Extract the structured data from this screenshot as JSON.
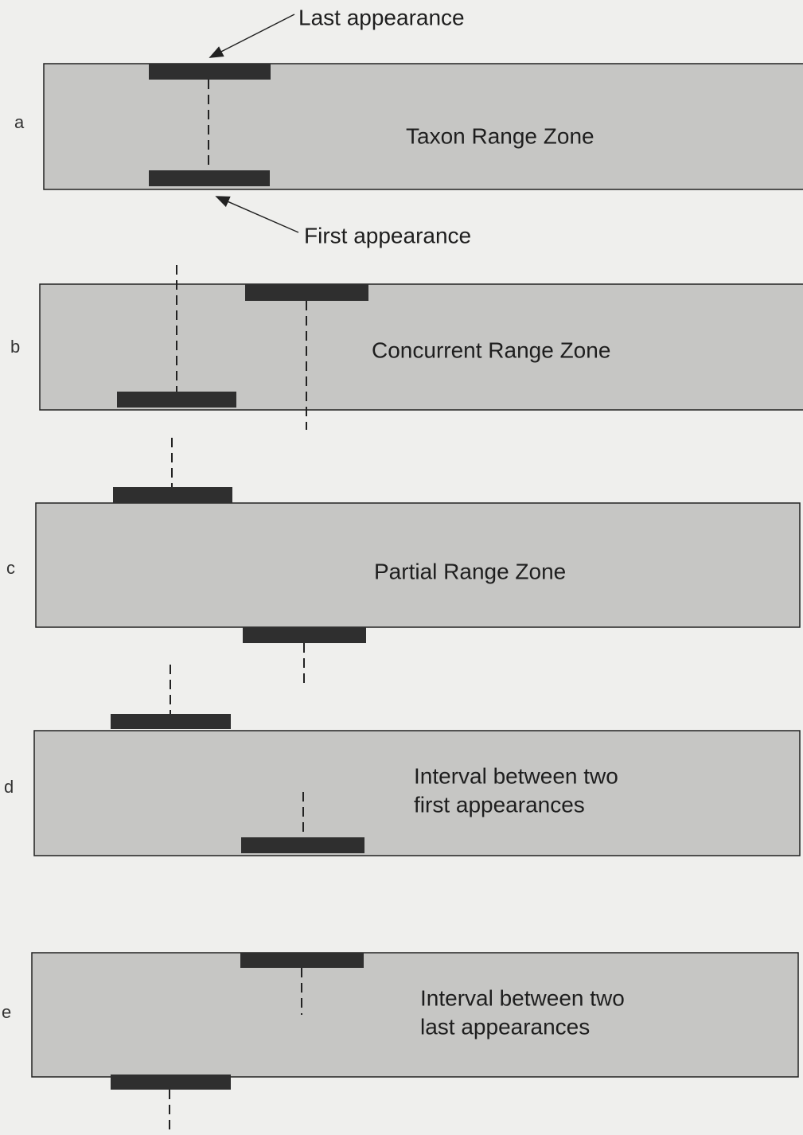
{
  "annotations": {
    "last_appearance": "Last appearance",
    "first_appearance": "First appearance"
  },
  "panels": [
    {
      "letter": "a",
      "label": [
        "Taxon Range Zone"
      ]
    },
    {
      "letter": "b",
      "label": [
        "Concurrent Range Zone"
      ]
    },
    {
      "letter": "c",
      "label": [
        "Partial Range Zone"
      ]
    },
    {
      "letter": "d",
      "label": [
        "Interval between two",
        "first appearances"
      ]
    },
    {
      "letter": "e",
      "label": [
        "Interval between two",
        "last appearances"
      ]
    }
  ]
}
